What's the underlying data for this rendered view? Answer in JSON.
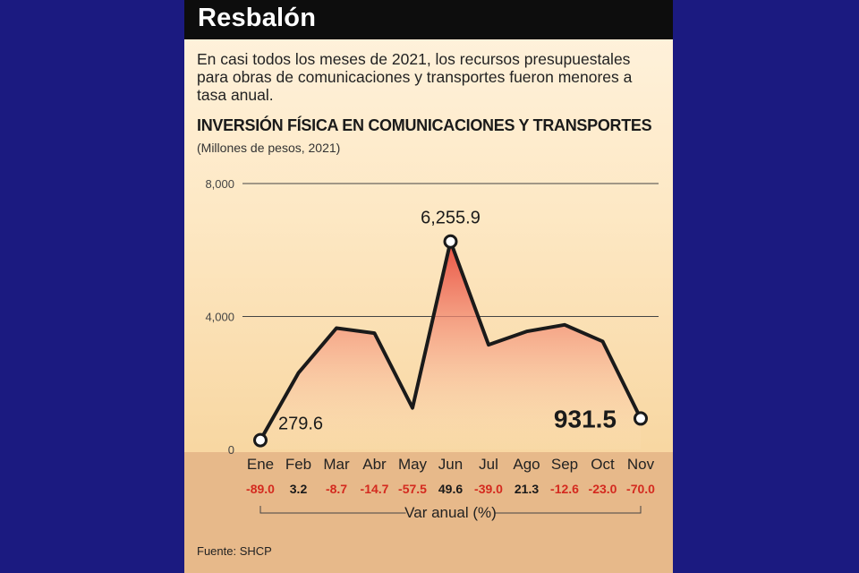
{
  "header": {
    "title": "Resbalón"
  },
  "subtitle": "En casi todos los meses de 2021, los recursos presupuestales para obras de comunicaciones y transportes fueron menores a tasa anual.",
  "source": "Fuente: SHCP",
  "colors": {
    "background": "#1b1a80",
    "line": "#1a1a1a",
    "fill_top": "#e8483a",
    "negative": "#d42a1f",
    "positive": "#1a1a1a"
  },
  "chart_data": {
    "type": "area",
    "title": "INVERSIÓN FÍSICA EN COMUNICACIONES Y TRANSPORTES",
    "unit": "(Millones de pesos, 2021)",
    "categories": [
      "Ene",
      "Feb",
      "Mar",
      "Abr",
      "May",
      "Jun",
      "Jul",
      "Ago",
      "Sep",
      "Oct",
      "Nov"
    ],
    "values": [
      279.6,
      2300,
      3650,
      3500,
      1250,
      6255.9,
      3150,
      3550,
      3750,
      3250,
      931.5
    ],
    "ylim": [
      0,
      8000
    ],
    "yticks": [
      0,
      4000,
      8000
    ],
    "ytick_labels": [
      "0",
      "4,000",
      "8,000"
    ],
    "grid": true,
    "annotations": [
      {
        "index": 0,
        "text": "279.6"
      },
      {
        "index": 5,
        "text": "6,255.9"
      },
      {
        "index": 10,
        "text": "931.5"
      }
    ],
    "var_anual_label": "Var anual (%)",
    "var_anual": [
      "-89.0",
      "3.2",
      "-8.7",
      "-14.7",
      "-57.5",
      "49.6",
      "-39.0",
      "21.3",
      "-12.6",
      "-23.0",
      "-70.0"
    ]
  }
}
